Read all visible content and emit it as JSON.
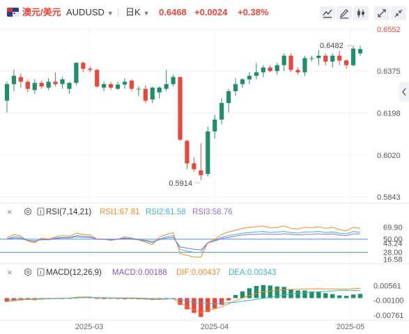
{
  "header": {
    "pair_name": "澳元/美元",
    "symbol": "AUDUSD",
    "period": "日K",
    "price": "0.6468",
    "change": "+0.0024",
    "change_pct": "+0.38%",
    "rise_color": "#e8473b",
    "fall_color": "#1f8f6a"
  },
  "icons": {
    "indicator": "bar-chart-icon",
    "draw": "pencil-icon",
    "candle_type": "candlestick-icon",
    "fullscreen": "expand-icon",
    "side_panel": "chevron-left-icon"
  },
  "chart_data": [
    {
      "type": "candlestick",
      "panel": "price",
      "price_axis_ticks": [
        "0.6552",
        "0.6375",
        "0.6198",
        "0.6020",
        "0.5843"
      ],
      "ylim": [
        0.5843,
        0.6552
      ],
      "x_axis_labels": [
        "2025-03",
        "2025-04",
        "2025-05"
      ],
      "annotations": {
        "high": "0.6482",
        "low": "0.5914"
      },
      "candles": [
        [
          0.625,
          0.633,
          0.62,
          0.632
        ],
        [
          0.632,
          0.638,
          0.629,
          0.6355
        ],
        [
          0.635,
          0.6365,
          0.6305,
          0.633
        ],
        [
          0.633,
          0.634,
          0.6285,
          0.63
        ],
        [
          0.6295,
          0.634,
          0.628,
          0.6325
        ],
        [
          0.6325,
          0.6335,
          0.63,
          0.631
        ],
        [
          0.6305,
          0.6345,
          0.6295,
          0.633
        ],
        [
          0.633,
          0.637,
          0.631,
          0.632
        ],
        [
          0.632,
          0.635,
          0.63,
          0.634
        ],
        [
          0.63,
          0.633,
          0.628,
          0.6325
        ],
        [
          0.6325,
          0.6412,
          0.6315,
          0.641
        ],
        [
          0.641,
          0.6415,
          0.637,
          0.6385
        ],
        [
          0.6385,
          0.6395,
          0.637,
          0.638
        ],
        [
          0.638,
          0.6385,
          0.6305,
          0.631
        ],
        [
          0.6305,
          0.633,
          0.629,
          0.632
        ],
        [
          0.632,
          0.633,
          0.6295,
          0.6305
        ],
        [
          0.63,
          0.633,
          0.6295,
          0.6318
        ],
        [
          0.6318,
          0.6345,
          0.63,
          0.633
        ],
        [
          0.6335,
          0.634,
          0.629,
          0.63
        ],
        [
          0.63,
          0.631,
          0.627,
          0.63
        ],
        [
          0.63,
          0.6315,
          0.624,
          0.625
        ],
        [
          0.6255,
          0.631,
          0.624,
          0.6305
        ],
        [
          0.6285,
          0.631,
          0.626,
          0.6305
        ],
        [
          0.63,
          0.638,
          0.629,
          0.632
        ],
        [
          0.632,
          0.636,
          0.631,
          0.635
        ],
        [
          0.635,
          0.635,
          0.608,
          0.6085
        ],
        [
          0.608,
          0.6085,
          0.596,
          0.5985
        ],
        [
          0.5985,
          0.601,
          0.595,
          0.596
        ],
        [
          0.5955,
          0.607,
          0.5914,
          0.5935
        ],
        [
          0.594,
          0.614,
          0.593,
          0.612
        ],
        [
          0.612,
          0.619,
          0.609,
          0.617
        ],
        [
          0.617,
          0.626,
          0.615,
          0.624
        ],
        [
          0.624,
          0.63,
          0.62,
          0.629
        ],
        [
          0.629,
          0.6345,
          0.627,
          0.632
        ],
        [
          0.632,
          0.6345,
          0.6305,
          0.634
        ],
        [
          0.634,
          0.637,
          0.632,
          0.6355
        ],
        [
          0.6355,
          0.641,
          0.634,
          0.637
        ],
        [
          0.637,
          0.64,
          0.635,
          0.639
        ],
        [
          0.639,
          0.64,
          0.637,
          0.6375
        ],
        [
          0.6375,
          0.641,
          0.636,
          0.64
        ],
        [
          0.64,
          0.645,
          0.6375,
          0.644
        ],
        [
          0.644,
          0.645,
          0.637,
          0.638
        ],
        [
          0.638,
          0.639,
          0.636,
          0.637
        ],
        [
          0.637,
          0.644,
          0.6355,
          0.643
        ],
        [
          0.643,
          0.644,
          0.6415,
          0.643
        ],
        [
          0.643,
          0.6465,
          0.64,
          0.644
        ],
        [
          0.644,
          0.645,
          0.64,
          0.6415
        ],
        [
          0.6415,
          0.645,
          0.639,
          0.644
        ],
        [
          0.644,
          0.646,
          0.64,
          0.642
        ],
        [
          0.642,
          0.6425,
          0.6385,
          0.64
        ],
        [
          0.64,
          0.6482,
          0.6395,
          0.647
        ],
        [
          0.645,
          0.6482,
          0.644,
          0.6468
        ]
      ]
    },
    {
      "type": "line",
      "panel": "rsi",
      "indicator": "RSI(7,14,21)",
      "legend": [
        {
          "name": "RSI1",
          "value": "67.81",
          "color": "#f08a2c"
        },
        {
          "name": "RSI2",
          "value": "61.58",
          "color": "#3fb4c8"
        },
        {
          "name": "RSI3",
          "value": "58.76",
          "color": "#8f6fd6"
        }
      ],
      "axis_ticks": [
        "69.90",
        "50.00",
        "43.24",
        "28.00",
        "16.58"
      ],
      "reference_lines": [
        50,
        28
      ],
      "ylim": [
        10,
        80
      ],
      "series": [
        {
          "name": "RSI1",
          "values": [
            52,
            58,
            55,
            47,
            44,
            52,
            50,
            54,
            56,
            55,
            60,
            58,
            57,
            50,
            50,
            48,
            50,
            54,
            52,
            49,
            45,
            41,
            53,
            58,
            61,
            26,
            23,
            20,
            20,
            44,
            50,
            58,
            62,
            65,
            68,
            70,
            71,
            72,
            69,
            70,
            72,
            68,
            67,
            70,
            69,
            71,
            68,
            70,
            66,
            64,
            70,
            67.81
          ]
        },
        {
          "name": "RSI2",
          "values": [
            50,
            54,
            53,
            48,
            46,
            50,
            49,
            52,
            53,
            53,
            56,
            55,
            54,
            50,
            50,
            48,
            50,
            52,
            51,
            49,
            47,
            44,
            50,
            54,
            56,
            33,
            30,
            28,
            28,
            44,
            48,
            53,
            56,
            58,
            60,
            61,
            62,
            63,
            61,
            62,
            63,
            61,
            60,
            62,
            62,
            63,
            61,
            62,
            60,
            59,
            63,
            61.58
          ]
        },
        {
          "name": "RSI3",
          "values": [
            50,
            52,
            51,
            48,
            47,
            49,
            49,
            51,
            52,
            52,
            54,
            53,
            53,
            50,
            50,
            49,
            50,
            51,
            50,
            49,
            48,
            46,
            49,
            52,
            53,
            37,
            35,
            33,
            32,
            44,
            47,
            51,
            53,
            55,
            57,
            58,
            58,
            59,
            58,
            58,
            59,
            58,
            57,
            58,
            58,
            59,
            58,
            59,
            57,
            56,
            59,
            58.76
          ]
        }
      ]
    },
    {
      "type": "bar_line",
      "panel": "macd",
      "indicator": "MACD(12,26,9)",
      "legend": [
        {
          "name": "MACD",
          "value": "0.00188",
          "color": "#7a5ac8"
        },
        {
          "name": "DIF",
          "value": "0.00437",
          "color": "#f08a2c"
        },
        {
          "name": "DEA",
          "value": "0.00343",
          "color": "#3fb4c8"
        }
      ],
      "axis_ticks": [
        "0.00561",
        "-0.00100",
        "-0.00761"
      ],
      "ylim": [
        -0.0098,
        0.0082
      ],
      "histogram": [
        -0.0016,
        -0.0013,
        -0.001,
        -0.0008,
        -0.0009,
        -0.0006,
        -0.0005,
        -0.0004,
        -0.0004,
        -0.0003,
        0.0002,
        0.0003,
        0.0004,
        -0.0003,
        -0.0004,
        -0.0003,
        -0.0004,
        -0.0005,
        -0.0004,
        -0.0005,
        -0.0006,
        -0.0008,
        -0.0006,
        -0.0004,
        -0.0002,
        -0.003,
        -0.005,
        -0.0066,
        -0.0084,
        -0.0062,
        -0.0046,
        -0.003,
        -0.001,
        0.0014,
        0.003,
        0.0044,
        0.0054,
        0.0058,
        0.0056,
        0.0052,
        0.005,
        0.004,
        0.0034,
        0.0034,
        0.003,
        0.0028,
        0.0022,
        0.0018,
        0.0012,
        0.001,
        0.0016,
        0.00188
      ],
      "dif": [
        -0.0015,
        -0.0011,
        -0.0008,
        -0.0006,
        -0.0006,
        -0.0004,
        -0.0003,
        -0.0002,
        -0.0001,
        0.0,
        0.0004,
        0.0005,
        0.0005,
        0.0001,
        0.0,
        0.0,
        -0.0001,
        -0.0001,
        -0.0001,
        -0.0002,
        -0.0004,
        -0.0006,
        -0.0006,
        -0.0004,
        -0.0003,
        -0.0022,
        -0.0038,
        -0.0052,
        -0.0064,
        -0.0055,
        -0.0048,
        -0.0038,
        -0.0025,
        -0.0012,
        0.0001,
        0.0012,
        0.0021,
        0.0028,
        0.0032,
        0.0035,
        0.0038,
        0.0039,
        0.0039,
        0.0041,
        0.0041,
        0.0042,
        0.0041,
        0.0041,
        0.004,
        0.004,
        0.0042,
        0.00437
      ],
      "dea": [
        -0.0008,
        -0.0006,
        -0.0005,
        -0.0004,
        -0.0003,
        -0.0002,
        -0.0002,
        -0.0001,
        -0.0001,
        0.0,
        0.0001,
        0.0002,
        0.0002,
        0.0002,
        0.0002,
        0.0001,
        0.0001,
        0.0001,
        0.0001,
        0.0,
        -0.0001,
        -0.0002,
        -0.0003,
        -0.0003,
        -0.0003,
        -0.0007,
        -0.0013,
        -0.0019,
        -0.0022,
        -0.0024,
        -0.0025,
        -0.0023,
        -0.002,
        -0.0019,
        -0.0014,
        -0.001,
        -0.0006,
        -0.0001,
        0.0004,
        0.0009,
        0.0013,
        0.0019,
        0.0022,
        0.0024,
        0.0026,
        0.0028,
        0.003,
        0.0032,
        0.0034,
        0.0035,
        0.0034,
        0.00343
      ]
    }
  ]
}
